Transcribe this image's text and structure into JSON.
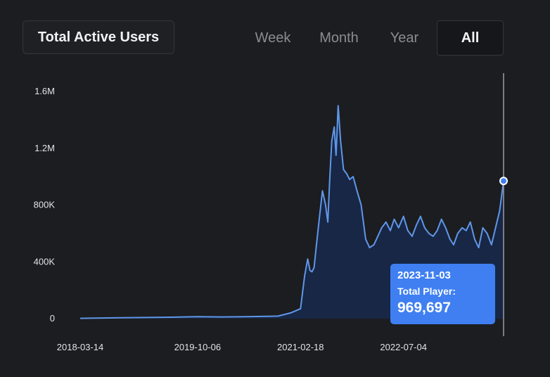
{
  "header": {
    "title": "Total Active Users",
    "tabs": [
      {
        "label": "Week",
        "active": false
      },
      {
        "label": "Month",
        "active": false
      },
      {
        "label": "Year",
        "active": false
      },
      {
        "label": "All",
        "active": true
      }
    ]
  },
  "colors": {
    "background": "#1c1d20",
    "line": "#5f97ea",
    "area": "#182746",
    "tooltip": "#3f7ff2",
    "cursor": "#9a9ca2"
  },
  "tooltip": {
    "date": "2023-11-03",
    "label": "Total Player:",
    "value": "969,697"
  },
  "chart_data": {
    "type": "area",
    "title": "",
    "xlabel": "",
    "ylabel": "",
    "y_ticks": [
      "0",
      "400K",
      "800K",
      "1.2M",
      "1.6M"
    ],
    "y_tick_values": [
      0,
      400000,
      800000,
      1200000,
      1600000
    ],
    "x_ticks": [
      "2018-03-14",
      "2019-10-06",
      "2021-02-18",
      "2022-07-04"
    ],
    "xlim": [
      "2018-03-14",
      "2023-11-03"
    ],
    "ylim": [
      0,
      1600000
    ],
    "grid": false,
    "legend": "none",
    "series": [
      {
        "x": [
          "2018-03-14",
          "2018-06-01",
          "2018-10-01",
          "2019-02-01",
          "2019-06-01",
          "2019-10-06",
          "2020-02-01",
          "2020-06-01",
          "2020-09-01",
          "2020-11-01",
          "2021-01-01",
          "2021-02-18",
          "2021-03-10",
          "2021-03-25",
          "2021-04-05",
          "2021-04-15",
          "2021-04-25",
          "2021-05-05",
          "2021-05-20",
          "2021-06-05",
          "2021-06-20",
          "2021-07-01",
          "2021-07-10",
          "2021-07-20",
          "2021-08-01",
          "2021-08-10",
          "2021-08-20",
          "2021-09-01",
          "2021-09-15",
          "2021-10-01",
          "2021-10-15",
          "2021-11-01",
          "2021-11-20",
          "2021-12-10",
          "2022-01-01",
          "2022-01-20",
          "2022-02-10",
          "2022-03-01",
          "2022-03-20",
          "2022-04-10",
          "2022-05-01",
          "2022-05-20",
          "2022-06-10",
          "2022-07-04",
          "2022-07-25",
          "2022-08-15",
          "2022-09-05",
          "2022-09-25",
          "2022-10-15",
          "2022-11-05",
          "2022-11-25",
          "2022-12-15",
          "2023-01-05",
          "2023-01-25",
          "2023-02-15",
          "2023-03-05",
          "2023-03-25",
          "2023-04-15",
          "2023-05-05",
          "2023-05-25",
          "2023-06-15",
          "2023-07-05",
          "2023-07-25",
          "2023-08-15",
          "2023-09-05",
          "2023-09-25",
          "2023-10-15",
          "2023-11-03"
        ],
        "values": [
          2000,
          4000,
          6000,
          8000,
          10000,
          14000,
          12000,
          14000,
          16000,
          18000,
          40000,
          70000,
          300000,
          420000,
          340000,
          330000,
          360000,
          500000,
          700000,
          900000,
          800000,
          680000,
          980000,
          1250000,
          1350000,
          1150000,
          1500000,
          1250000,
          1050000,
          1020000,
          980000,
          1000000,
          900000,
          800000,
          560000,
          500000,
          520000,
          580000,
          640000,
          680000,
          620000,
          700000,
          640000,
          720000,
          620000,
          580000,
          660000,
          720000,
          640000,
          600000,
          580000,
          620000,
          700000,
          640000,
          560000,
          520000,
          600000,
          640000,
          620000,
          680000,
          560000,
          500000,
          640000,
          600000,
          520000,
          640000,
          760000,
          969697
        ]
      }
    ]
  }
}
